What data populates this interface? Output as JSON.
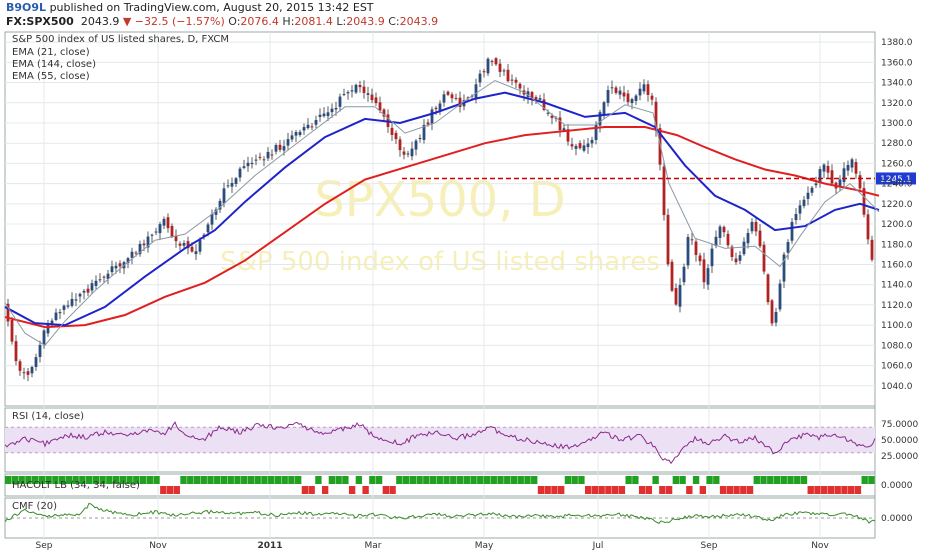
{
  "header": {
    "user": "B9O9L",
    "published_text": "published on TradingView.com, August 20, 2015 13:42 EST",
    "symbol": "FX:SPX500",
    "last": "2043.9",
    "change": "−32.5 (−1.57%)",
    "o_label": "O:",
    "o_value": "2076.4",
    "h_label": "H:",
    "h_value": "2081.4",
    "l_label": "L:",
    "l_value": "2043.9",
    "c_label": "C:",
    "c_value": "2043.9"
  },
  "legend": {
    "title": "S&P 500 index of US listed shares, D, FXCM",
    "ema21": "EMA (21, close)",
    "ema144": "EMA (144, close)",
    "ema55": "EMA (55, close)"
  },
  "watermark": {
    "line1": "SPX500, D",
    "line2": "S&P 500 index of US listed shares"
  },
  "price_label": "1245.1",
  "panes": {
    "rsi": "RSI (14, close)",
    "hacolt": "HACOLT LB (34, 34, false)",
    "cmf": "CMF (20)"
  },
  "chart_data": {
    "type": "candlestick",
    "x_tick_labels": [
      "Sep",
      "Nov",
      "2011",
      "Mar",
      "May",
      "Jul",
      "Sep",
      "Nov"
    ],
    "y_tick_labels": [
      "1040.0",
      "1060.0",
      "1080.0",
      "1100.0",
      "1120.0",
      "1140.0",
      "1160.0",
      "1180.0",
      "1200.0",
      "1220.0",
      "1240.0",
      "1260.0",
      "1280.0",
      "1300.0",
      "1320.0",
      "1340.0",
      "1360.0",
      "1380.0"
    ],
    "ylim": [
      1020,
      1390
    ],
    "horizontal_line": 1245.1,
    "colors": {
      "up": "#2b4c7e",
      "down": "#b22222",
      "ema21": "#8a9aa5",
      "ema55": "#1f24c8",
      "ema144": "#e02020",
      "level": "#cc0000",
      "price_tag": "#1f3bd1",
      "rsi": "#8a2a8a",
      "rsi_band": "#ece0f5",
      "cmf": "#3a8a2a",
      "hacolt_up": "#22a022",
      "hacolt_down": "#e03030"
    },
    "price_path": [
      [
        0,
        1123
      ],
      [
        8,
        1075
      ],
      [
        18,
        1048
      ],
      [
        28,
        1058
      ],
      [
        38,
        1090
      ],
      [
        52,
        1112
      ],
      [
        70,
        1125
      ],
      [
        90,
        1140
      ],
      [
        110,
        1158
      ],
      [
        128,
        1172
      ],
      [
        142,
        1182
      ],
      [
        150,
        1195
      ],
      [
        157,
        1206
      ],
      [
        162,
        1196
      ],
      [
        170,
        1186
      ],
      [
        180,
        1178
      ],
      [
        188,
        1172
      ],
      [
        196,
        1182
      ],
      [
        206,
        1206
      ],
      [
        220,
        1236
      ],
      [
        240,
        1256
      ],
      [
        262,
        1268
      ],
      [
        282,
        1282
      ],
      [
        305,
        1298
      ],
      [
        325,
        1312
      ],
      [
        338,
        1326
      ],
      [
        350,
        1334
      ],
      [
        362,
        1332
      ],
      [
        372,
        1318
      ],
      [
        382,
        1300
      ],
      [
        392,
        1284
      ],
      [
        400,
        1262
      ],
      [
        410,
        1278
      ],
      [
        420,
        1296
      ],
      [
        430,
        1316
      ],
      [
        442,
        1330
      ],
      [
        455,
        1318
      ],
      [
        468,
        1332
      ],
      [
        478,
        1352
      ],
      [
        486,
        1364
      ],
      [
        496,
        1352
      ],
      [
        508,
        1340
      ],
      [
        520,
        1330
      ],
      [
        532,
        1324
      ],
      [
        545,
        1310
      ],
      [
        557,
        1294
      ],
      [
        568,
        1278
      ],
      [
        578,
        1274
      ],
      [
        588,
        1286
      ],
      [
        598,
        1320
      ],
      [
        606,
        1336
      ],
      [
        614,
        1332
      ],
      [
        622,
        1318
      ],
      [
        632,
        1328
      ],
      [
        640,
        1338
      ],
      [
        648,
        1318
      ],
      [
        656,
        1252
      ],
      [
        664,
        1145
      ],
      [
        670,
        1118
      ],
      [
        678,
        1152
      ],
      [
        684,
        1190
      ],
      [
        692,
        1170
      ],
      [
        700,
        1142
      ],
      [
        708,
        1178
      ],
      [
        716,
        1202
      ],
      [
        724,
        1172
      ],
      [
        730,
        1158
      ],
      [
        738,
        1182
      ],
      [
        746,
        1202
      ],
      [
        754,
        1182
      ],
      [
        762,
        1132
      ],
      [
        768,
        1098
      ],
      [
        772,
        1120
      ],
      [
        778,
        1162
      ],
      [
        786,
        1198
      ],
      [
        794,
        1214
      ],
      [
        802,
        1226
      ],
      [
        810,
        1236
      ],
      [
        816,
        1262
      ],
      [
        824,
        1250
      ],
      [
        830,
        1232
      ],
      [
        838,
        1250
      ],
      [
        846,
        1264
      ],
      [
        852,
        1246
      ],
      [
        858,
        1218
      ],
      [
        864,
        1176
      ],
      [
        868,
        1160
      ],
      [
        874,
        1205
      ]
    ],
    "ema21_path": [
      [
        0,
        1122
      ],
      [
        20,
        1092
      ],
      [
        40,
        1080
      ],
      [
        60,
        1104
      ],
      [
        90,
        1134
      ],
      [
        120,
        1160
      ],
      [
        150,
        1184
      ],
      [
        180,
        1190
      ],
      [
        210,
        1212
      ],
      [
        250,
        1248
      ],
      [
        300,
        1286
      ],
      [
        340,
        1316
      ],
      [
        370,
        1316
      ],
      [
        400,
        1290
      ],
      [
        430,
        1300
      ],
      [
        460,
        1322
      ],
      [
        490,
        1342
      ],
      [
        520,
        1330
      ],
      [
        560,
        1298
      ],
      [
        590,
        1298
      ],
      [
        620,
        1318
      ],
      [
        648,
        1310
      ],
      [
        664,
        1240
      ],
      [
        690,
        1186
      ],
      [
        720,
        1176
      ],
      [
        750,
        1178
      ],
      [
        775,
        1158
      ],
      [
        795,
        1188
      ],
      [
        820,
        1222
      ],
      [
        845,
        1240
      ],
      [
        860,
        1226
      ],
      [
        874,
        1212
      ]
    ],
    "ema55_path": [
      [
        0,
        1118
      ],
      [
        30,
        1102
      ],
      [
        60,
        1100
      ],
      [
        100,
        1118
      ],
      [
        140,
        1148
      ],
      [
        180,
        1176
      ],
      [
        210,
        1194
      ],
      [
        240,
        1222
      ],
      [
        280,
        1256
      ],
      [
        320,
        1286
      ],
      [
        360,
        1304
      ],
      [
        395,
        1300
      ],
      [
        430,
        1310
      ],
      [
        470,
        1324
      ],
      [
        500,
        1330
      ],
      [
        540,
        1320
      ],
      [
        580,
        1306
      ],
      [
        620,
        1310
      ],
      [
        650,
        1296
      ],
      [
        680,
        1258
      ],
      [
        710,
        1228
      ],
      [
        740,
        1214
      ],
      [
        770,
        1194
      ],
      [
        800,
        1198
      ],
      [
        830,
        1214
      ],
      [
        855,
        1220
      ],
      [
        874,
        1214
      ]
    ],
    "ema144_path": [
      [
        0,
        1108
      ],
      [
        40,
        1098
      ],
      [
        80,
        1100
      ],
      [
        120,
        1110
      ],
      [
        160,
        1128
      ],
      [
        200,
        1142
      ],
      [
        240,
        1164
      ],
      [
        280,
        1192
      ],
      [
        320,
        1220
      ],
      [
        360,
        1244
      ],
      [
        400,
        1256
      ],
      [
        440,
        1268
      ],
      [
        480,
        1280
      ],
      [
        520,
        1288
      ],
      [
        560,
        1292
      ],
      [
        600,
        1296
      ],
      [
        640,
        1296
      ],
      [
        672,
        1288
      ],
      [
        700,
        1276
      ],
      [
        730,
        1264
      ],
      [
        760,
        1254
      ],
      [
        790,
        1248
      ],
      [
        820,
        1240
      ],
      [
        850,
        1234
      ],
      [
        874,
        1228
      ]
    ],
    "rsi_ticks": [
      "75.0000",
      "50.0000",
      "25.0000"
    ],
    "rsi_ylim": [
      0,
      100
    ],
    "rsi_path": [
      [
        0,
        40
      ],
      [
        20,
        52
      ],
      [
        40,
        44
      ],
      [
        60,
        58
      ],
      [
        80,
        54
      ],
      [
        100,
        62
      ],
      [
        120,
        56
      ],
      [
        140,
        66
      ],
      [
        160,
        60
      ],
      [
        170,
        76
      ],
      [
        182,
        56
      ],
      [
        200,
        52
      ],
      [
        215,
        70
      ],
      [
        235,
        62
      ],
      [
        255,
        74
      ],
      [
        275,
        68
      ],
      [
        290,
        76
      ],
      [
        300,
        70
      ],
      [
        320,
        60
      ],
      [
        340,
        68
      ],
      [
        355,
        74
      ],
      [
        370,
        54
      ],
      [
        385,
        50
      ],
      [
        395,
        42
      ],
      [
        410,
        56
      ],
      [
        430,
        62
      ],
      [
        450,
        52
      ],
      [
        470,
        60
      ],
      [
        485,
        70
      ],
      [
        500,
        56
      ],
      [
        520,
        50
      ],
      [
        540,
        46
      ],
      [
        560,
        38
      ],
      [
        575,
        42
      ],
      [
        590,
        54
      ],
      [
        600,
        62
      ],
      [
        615,
        50
      ],
      [
        635,
        56
      ],
      [
        650,
        38
      ],
      [
        658,
        22
      ],
      [
        665,
        14
      ],
      [
        675,
        32
      ],
      [
        690,
        52
      ],
      [
        705,
        46
      ],
      [
        720,
        56
      ],
      [
        735,
        46
      ],
      [
        750,
        54
      ],
      [
        762,
        40
      ],
      [
        770,
        28
      ],
      [
        782,
        48
      ],
      [
        800,
        58
      ],
      [
        815,
        54
      ],
      [
        830,
        60
      ],
      [
        845,
        48
      ],
      [
        860,
        40
      ],
      [
        868,
        44
      ],
      [
        874,
        58
      ]
    ],
    "hacolt_pattern": [
      1,
      1,
      1,
      1,
      1,
      1,
      1,
      1,
      1,
      1,
      1,
      1,
      1,
      1,
      1,
      1,
      1,
      1,
      1,
      1,
      1,
      1,
      1,
      0,
      0,
      0,
      1,
      1,
      1,
      1,
      1,
      1,
      1,
      1,
      1,
      1,
      1,
      1,
      1,
      1,
      1,
      1,
      1,
      1,
      0,
      0,
      1,
      0,
      1,
      1,
      1,
      0,
      1,
      0,
      1,
      1,
      0,
      0,
      1,
      1,
      1,
      1,
      1,
      1,
      1,
      1,
      1,
      1,
      1,
      1,
      1,
      1,
      1,
      1,
      1,
      1,
      1,
      1,
      1,
      0,
      0,
      0,
      0,
      1,
      1,
      1,
      0,
      0,
      0,
      0,
      0,
      0,
      1,
      1,
      0,
      0,
      1,
      0,
      0,
      1,
      1,
      0,
      1,
      0,
      1,
      1,
      0,
      0,
      0,
      0,
      0,
      1,
      1,
      1,
      1,
      1,
      1,
      1,
      1,
      0,
      0,
      0,
      0,
      0,
      0,
      0,
      0,
      1,
      1
    ],
    "hacolt_tick": "0.0000",
    "cmf_ticks": [
      "0.0000"
    ],
    "cmf_ylim": [
      -0.3,
      0.3
    ],
    "cmf_path": [
      [
        0,
        -0.04
      ],
      [
        20,
        0.12
      ],
      [
        40,
        0.02
      ],
      [
        60,
        0.06
      ],
      [
        75,
        0.04
      ],
      [
        85,
        0.22
      ],
      [
        95,
        0.12
      ],
      [
        110,
        0.08
      ],
      [
        130,
        0.05
      ],
      [
        150,
        0.09
      ],
      [
        170,
        0.04
      ],
      [
        190,
        0.07
      ],
      [
        210,
        0.1
      ],
      [
        230,
        0.06
      ],
      [
        250,
        0.08
      ],
      [
        270,
        0.04
      ],
      [
        290,
        0.09
      ],
      [
        310,
        0.05
      ],
      [
        330,
        0.07
      ],
      [
        350,
        0.03
      ],
      [
        370,
        0.05
      ],
      [
        390,
        0.0
      ],
      [
        410,
        0.02
      ],
      [
        430,
        0.06
      ],
      [
        450,
        0.03
      ],
      [
        470,
        0.05
      ],
      [
        490,
        0.06
      ],
      [
        510,
        0.02
      ],
      [
        530,
        0.04
      ],
      [
        550,
        0.01
      ],
      [
        570,
        0.05
      ],
      [
        590,
        0.03
      ],
      [
        610,
        0.06
      ],
      [
        630,
        0.02
      ],
      [
        645,
        -0.02
      ],
      [
        660,
        -0.08
      ],
      [
        670,
        -0.02
      ],
      [
        690,
        0.04
      ],
      [
        710,
        0.02
      ],
      [
        730,
        0.05
      ],
      [
        750,
        0.03
      ],
      [
        765,
        -0.04
      ],
      [
        780,
        0.06
      ],
      [
        800,
        0.08
      ],
      [
        820,
        0.05
      ],
      [
        840,
        0.07
      ],
      [
        855,
        0.0
      ],
      [
        865,
        -0.06
      ],
      [
        874,
        -0.02
      ]
    ]
  }
}
